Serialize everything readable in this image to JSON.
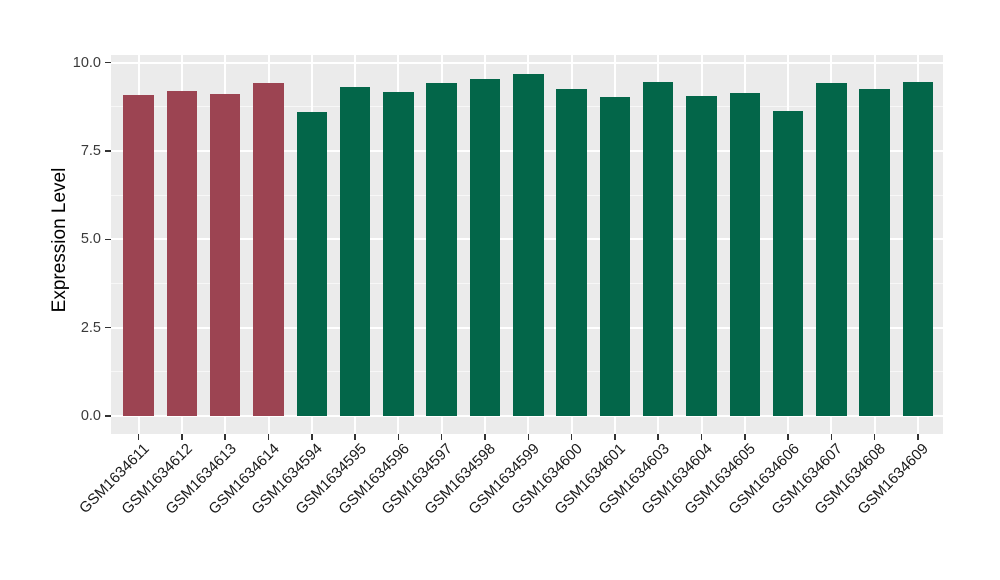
{
  "colors": {
    "panel_background": "#EBEBEB",
    "grid_major": "#FFFFFF",
    "grid_minor": "#FFFFFF",
    "bar_group_1": "#9C4452",
    "bar_group_2": "#036649",
    "y_axis_text": "#3A3A3A",
    "x_axis_text": "#1A1A1A",
    "tick_mark": "#333333",
    "axis_title": "#000000"
  },
  "chart_data": {
    "type": "bar",
    "title": "",
    "xlabel": "",
    "ylabel": "Expression Level",
    "ylim": [
      0,
      10
    ],
    "grid": true,
    "legend": "none",
    "yticks": {
      "labels": [
        "0.0",
        "2.5",
        "5.0",
        "7.5",
        "10.0"
      ],
      "values": [
        0,
        2.5,
        5,
        7.5,
        10
      ]
    },
    "minor_gridline_values": [
      1.25,
      3.75,
      6.25,
      8.75
    ],
    "categories": [
      "GSM1634611",
      "GSM1634612",
      "GSM1634613",
      "GSM1634614",
      "GSM1634594",
      "GSM1634595",
      "GSM1634596",
      "GSM1634597",
      "GSM1634598",
      "GSM1634599",
      "GSM1634600",
      "GSM1634601",
      "GSM1634603",
      "GSM1634604",
      "GSM1634605",
      "GSM1634606",
      "GSM1634607",
      "GSM1634608",
      "GSM1634609"
    ],
    "values": [
      9.07,
      9.2,
      9.11,
      9.42,
      8.61,
      9.3,
      9.16,
      9.41,
      9.52,
      9.67,
      9.24,
      9.03,
      9.44,
      9.06,
      9.13,
      8.63,
      9.41,
      9.25,
      9.46
    ],
    "bar_colors": [
      "#9C4452",
      "#9C4452",
      "#9C4452",
      "#9C4452",
      "#036649",
      "#036649",
      "#036649",
      "#036649",
      "#036649",
      "#036649",
      "#036649",
      "#036649",
      "#036649",
      "#036649",
      "#036649",
      "#036649",
      "#036649",
      "#036649",
      "#036649"
    ]
  }
}
